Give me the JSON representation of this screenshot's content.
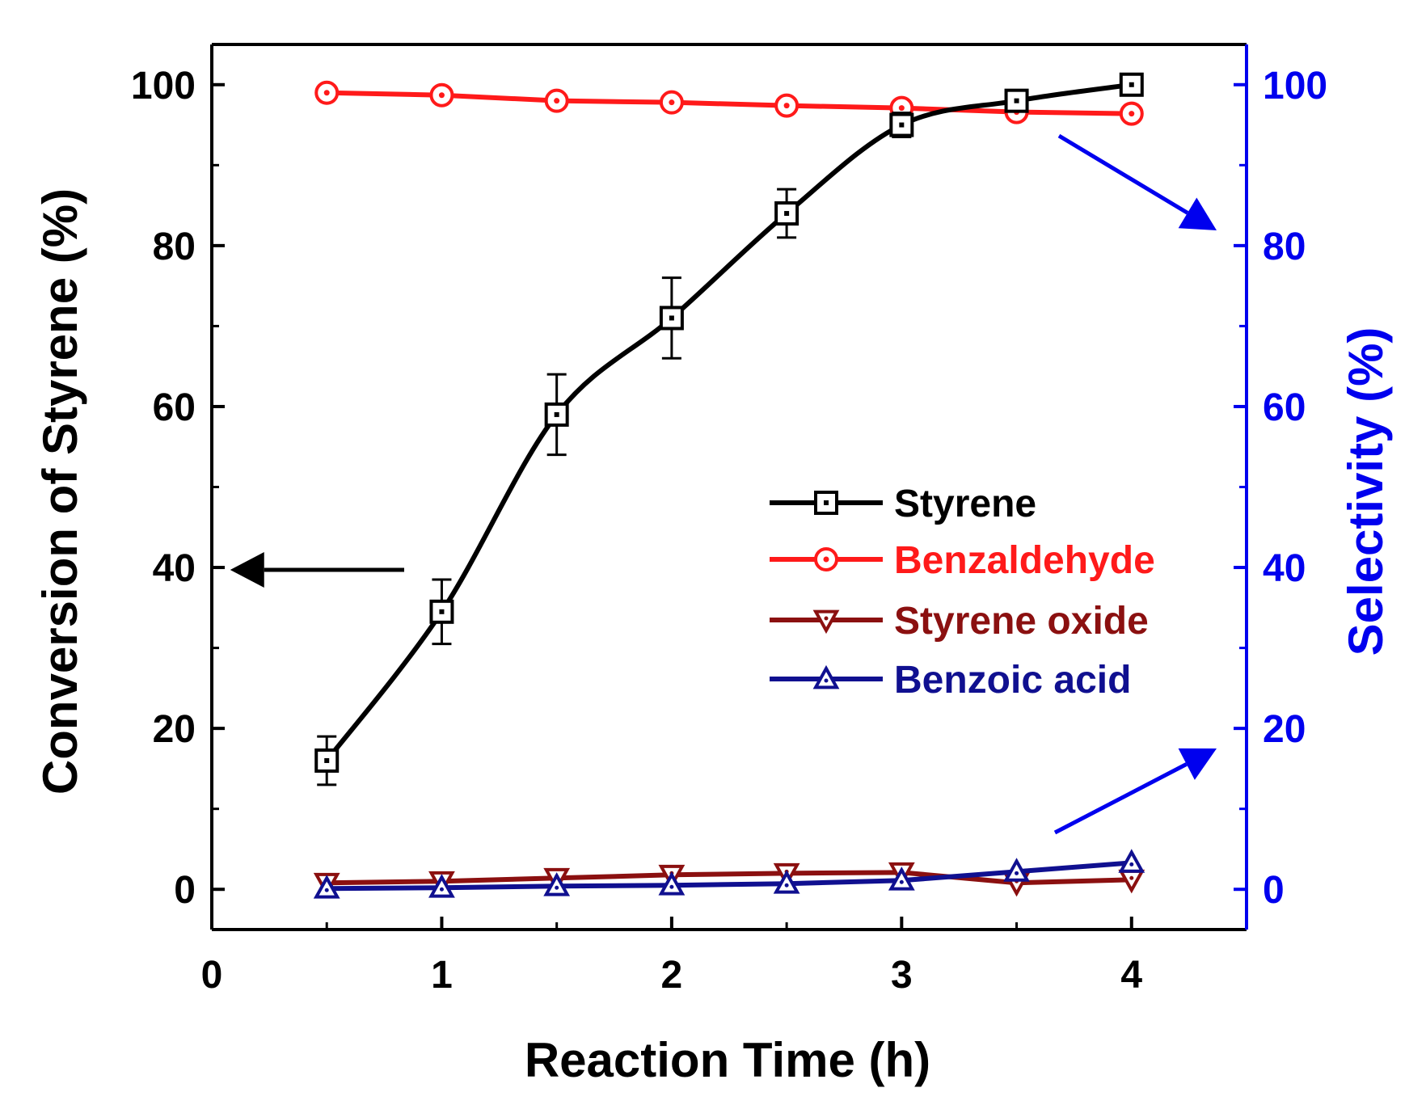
{
  "chart_data": {
    "type": "line",
    "xlabel": "Reaction Time (h)",
    "ylabel_left": "Conversion of Styrene (%)",
    "ylabel_right": "Selectivity (%)",
    "xlim": [
      0,
      4.5
    ],
    "ylim_left": [
      -5,
      105
    ],
    "ylim_right": [
      -5,
      105
    ],
    "x_ticks": [
      0,
      1,
      2,
      3,
      4
    ],
    "y_ticks_left": [
      0,
      20,
      40,
      60,
      80,
      100
    ],
    "y_ticks_right": [
      0,
      20,
      40,
      60,
      80,
      100
    ],
    "grid": false,
    "legend_position": "center-right",
    "x": [
      0.5,
      1,
      1.5,
      2,
      2.5,
      3,
      3.5,
      4
    ],
    "series": [
      {
        "name": "Styrene",
        "axis": "left",
        "color": "#000000",
        "marker": "square",
        "values": [
          16,
          34.5,
          59,
          71,
          84,
          95,
          98,
          100
        ],
        "errors": [
          3,
          4,
          5,
          5,
          3,
          1.5,
          0.8,
          0.5
        ]
      },
      {
        "name": "Benzaldehyde",
        "axis": "right",
        "color": "#ff1a1a",
        "marker": "circle",
        "values": [
          99,
          98.7,
          98,
          97.8,
          97.4,
          97.1,
          96.6,
          96.4
        ]
      },
      {
        "name": "Styrene oxide",
        "axis": "right",
        "color": "#8b1010",
        "marker": "triangle-down",
        "values": [
          0.8,
          1.0,
          1.4,
          1.8,
          2.0,
          2.1,
          0.8,
          1.2
        ]
      },
      {
        "name": "Benzoic acid",
        "axis": "right",
        "color": "#101090",
        "marker": "triangle-up",
        "values": [
          0.1,
          0.2,
          0.4,
          0.5,
          0.7,
          1.1,
          2.2,
          3.3
        ]
      }
    ],
    "colors": {
      "left_axis": "#000000",
      "right_axis": "#0000ee",
      "left_arrow": "#000000",
      "right_arrows": "#0000ee"
    }
  }
}
